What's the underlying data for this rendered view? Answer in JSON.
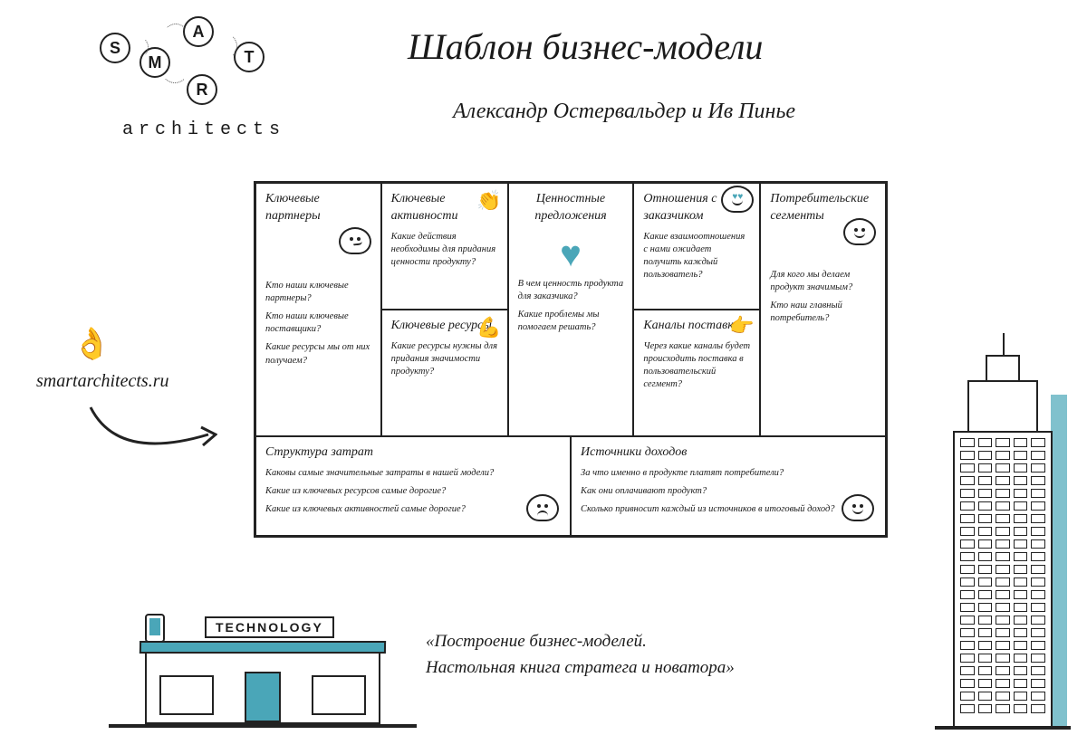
{
  "logo": {
    "letters": [
      "S",
      "M",
      "A",
      "R",
      "T"
    ],
    "word": "architects"
  },
  "title": "Шаблон бизнес-модели",
  "subtitle": "Александр Остервальдер и Ив Пинье",
  "website": "smartarchitects.ru",
  "canvas": {
    "partners": {
      "title": "Ключевые партнеры",
      "q1": "Кто наши ключевые партнеры?",
      "q2": "Кто наши ключевые поставщики?",
      "q3": "Какие ресурсы мы от них получаем?"
    },
    "activities": {
      "title": "Ключевые активности",
      "q1": "Какие действия необходимы для придания ценности продукту?"
    },
    "resources": {
      "title": "Ключевые ресурсы",
      "q1": "Какие ресурсы нужны для придания значимости продукту?"
    },
    "value": {
      "title": "Ценностные предложения",
      "q1": "В чем ценность продукта для заказчика?",
      "q2": "Какие проблемы мы помогаем решать?"
    },
    "relations": {
      "title": "Отношения с заказчиком",
      "q1": "Какие взаимоотношения с нами ожидает получить каждый пользователь?"
    },
    "channels": {
      "title": "Каналы поставки",
      "q1": "Через какие каналы будет происходить поставка в пользовательский сегмент?"
    },
    "segments": {
      "title": "Потребительские сегменты",
      "q1": "Для кого мы делаем продукт значимым?",
      "q2": "Кто наш главный потребитель?"
    },
    "costs": {
      "title": "Структура затрат",
      "q1": "Каковы самые значительные затраты в нашей модели?",
      "q2": "Какие из ключевых ресурсов самые дорогие?",
      "q3": "Какие из ключевых активностей самые дорогие?"
    },
    "revenue": {
      "title": "Источники доходов",
      "q1": "За что именно в продукте платят потребители?",
      "q2": "Как они оплачивают продукт?",
      "q3": "Сколько привносит каждый из источников в итоговый доход?"
    }
  },
  "store_sign": "TECHNOLOGY",
  "quote_l1": "«Построение бизнес-моделей.",
  "quote_l2": "Настольная книга стратега и новатора»",
  "colors": {
    "accent": "#4aa6b8",
    "ink": "#1a1a1a",
    "bg": "#ffffff"
  }
}
